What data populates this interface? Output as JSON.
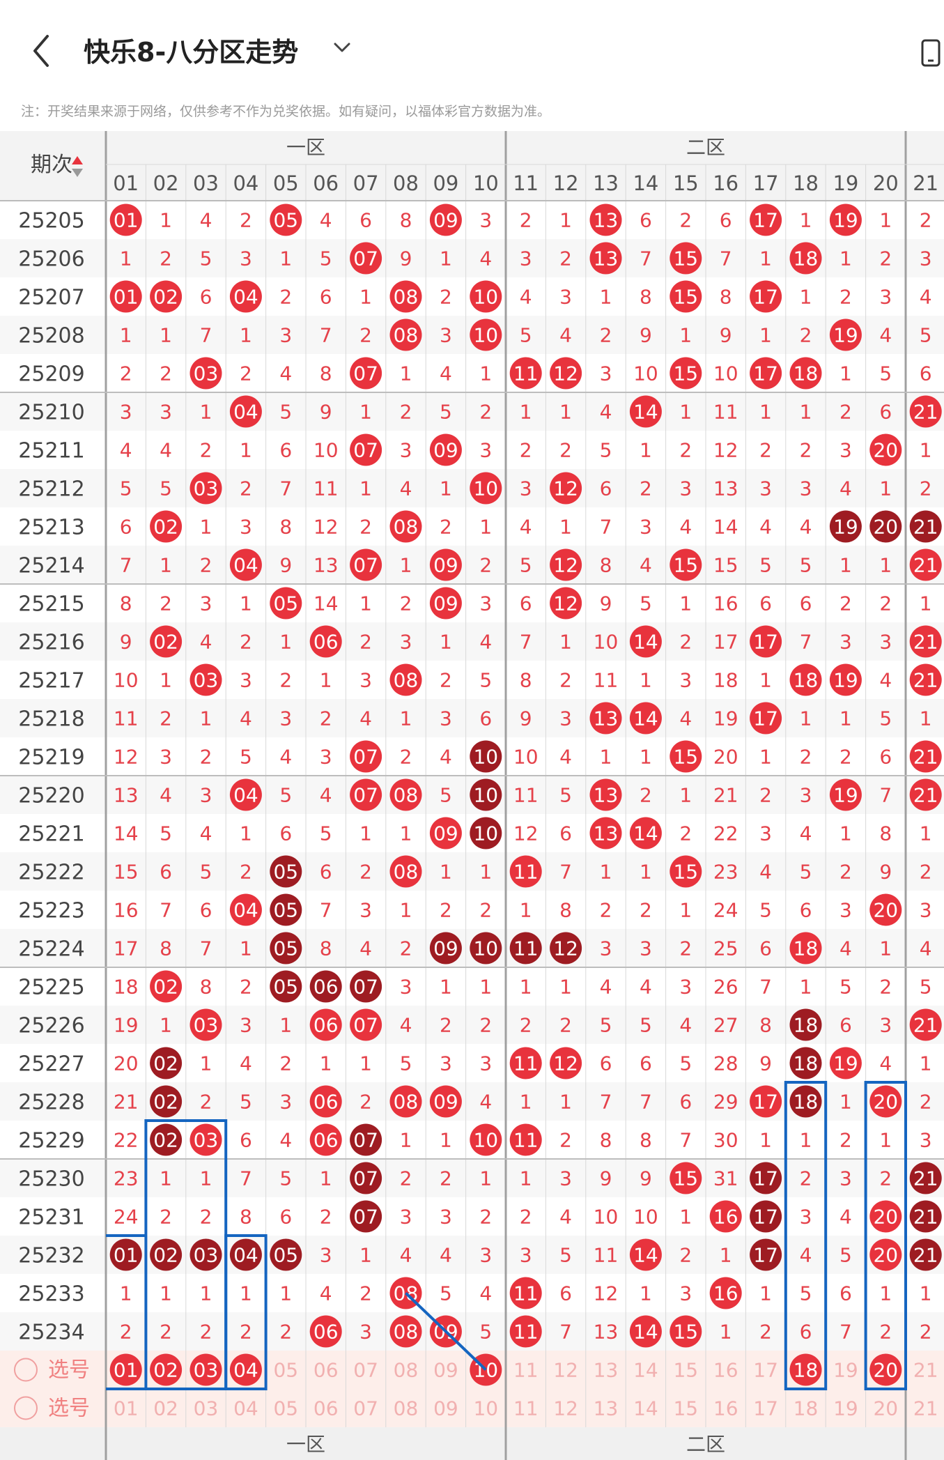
{
  "header": {
    "title": "快乐8-八分区走势",
    "back_icon": "chevron-left-icon",
    "dropdown_icon": "chevron-down-icon",
    "phone_icon": "phone-icon"
  },
  "notice": "注：开奖结果来源于网络，仅供参考不作为兑奖依据。如有疑问，以福体彩官方数据为准。",
  "table": {
    "period_header": "期次",
    "zones": [
      "一区",
      "二区"
    ],
    "columns": [
      "01",
      "02",
      "03",
      "04",
      "05",
      "06",
      "07",
      "08",
      "09",
      "10",
      "11",
      "12",
      "13",
      "14",
      "15",
      "16",
      "17",
      "18",
      "19",
      "20",
      "21"
    ],
    "rows": [
      {
        "period": "25205",
        "cells": [
          "H",
          1,
          4,
          2,
          "H",
          4,
          6,
          8,
          "H",
          3,
          2,
          1,
          "H",
          6,
          2,
          6,
          "H",
          1,
          "H",
          1,
          2
        ]
      },
      {
        "period": "25206",
        "cells": [
          1,
          2,
          5,
          3,
          1,
          5,
          "H",
          9,
          1,
          4,
          3,
          2,
          "H",
          7,
          "H",
          7,
          1,
          "H",
          1,
          2,
          3
        ]
      },
      {
        "period": "25207",
        "cells": [
          "H",
          "H",
          6,
          "H",
          2,
          6,
          1,
          "H",
          2,
          "H",
          4,
          3,
          1,
          8,
          "H",
          8,
          "H",
          1,
          2,
          3,
          4
        ]
      },
      {
        "period": "25208",
        "cells": [
          1,
          1,
          7,
          1,
          3,
          7,
          2,
          "H",
          3,
          "H",
          5,
          4,
          2,
          9,
          1,
          9,
          1,
          2,
          "H",
          4,
          5
        ]
      },
      {
        "period": "25209",
        "cells": [
          2,
          2,
          "H",
          2,
          4,
          8,
          "H",
          1,
          4,
          1,
          "H",
          "H",
          3,
          10,
          "H",
          10,
          "H",
          "H",
          1,
          5,
          6
        ]
      },
      {
        "period": "25210",
        "cells": [
          3,
          3,
          1,
          "H",
          5,
          9,
          1,
          2,
          5,
          2,
          1,
          1,
          4,
          "H",
          1,
          11,
          1,
          1,
          2,
          6,
          "H"
        ]
      },
      {
        "period": "25211",
        "cells": [
          4,
          4,
          2,
          1,
          6,
          10,
          "H",
          3,
          "H",
          3,
          2,
          2,
          5,
          1,
          2,
          12,
          2,
          2,
          3,
          "H",
          1
        ]
      },
      {
        "period": "25212",
        "cells": [
          5,
          5,
          "H",
          2,
          7,
          11,
          1,
          4,
          1,
          "H",
          3,
          "H",
          6,
          2,
          3,
          13,
          3,
          3,
          4,
          1,
          2
        ]
      },
      {
        "period": "25213",
        "cells": [
          6,
          "H",
          1,
          3,
          8,
          12,
          2,
          "H",
          2,
          1,
          4,
          1,
          7,
          3,
          4,
          14,
          4,
          4,
          "D",
          "D",
          "D"
        ]
      },
      {
        "period": "25214",
        "cells": [
          7,
          1,
          2,
          "H",
          9,
          13,
          "H",
          1,
          "H",
          2,
          5,
          "H",
          8,
          4,
          "H",
          15,
          5,
          5,
          1,
          1,
          "H"
        ]
      },
      {
        "period": "25215",
        "cells": [
          8,
          2,
          3,
          1,
          "H",
          14,
          1,
          2,
          "H",
          3,
          6,
          "H",
          9,
          5,
          1,
          16,
          6,
          6,
          2,
          2,
          1
        ]
      },
      {
        "period": "25216",
        "cells": [
          9,
          "H",
          4,
          2,
          1,
          "H",
          2,
          3,
          1,
          4,
          7,
          1,
          10,
          "H",
          2,
          17,
          "H",
          7,
          3,
          3,
          "H"
        ]
      },
      {
        "period": "25217",
        "cells": [
          10,
          1,
          "H",
          3,
          2,
          1,
          3,
          "H",
          2,
          5,
          8,
          2,
          11,
          1,
          3,
          18,
          1,
          "H",
          "H",
          4,
          "H"
        ]
      },
      {
        "period": "25218",
        "cells": [
          11,
          2,
          1,
          4,
          3,
          2,
          4,
          1,
          3,
          6,
          9,
          3,
          "H",
          "H",
          4,
          19,
          "H",
          1,
          1,
          5,
          1
        ]
      },
      {
        "period": "25219",
        "cells": [
          12,
          3,
          2,
          5,
          4,
          3,
          "H",
          2,
          4,
          "D",
          10,
          4,
          1,
          1,
          "H",
          20,
          1,
          2,
          2,
          6,
          "H"
        ]
      },
      {
        "period": "25220",
        "cells": [
          13,
          4,
          3,
          "H",
          5,
          4,
          "H",
          "H",
          5,
          "D",
          11,
          5,
          "H",
          2,
          1,
          21,
          2,
          3,
          "H",
          7,
          "H"
        ]
      },
      {
        "period": "25221",
        "cells": [
          14,
          5,
          4,
          1,
          6,
          5,
          1,
          1,
          "H",
          "D",
          12,
          6,
          "H",
          "H",
          2,
          22,
          3,
          4,
          1,
          8,
          1
        ]
      },
      {
        "period": "25222",
        "cells": [
          15,
          6,
          5,
          2,
          "D",
          6,
          2,
          "H",
          1,
          1,
          "H",
          7,
          1,
          1,
          "H",
          23,
          4,
          5,
          2,
          9,
          2
        ]
      },
      {
        "period": "25223",
        "cells": [
          16,
          7,
          6,
          "H",
          "D",
          7,
          3,
          1,
          2,
          2,
          1,
          8,
          2,
          2,
          1,
          24,
          5,
          6,
          3,
          "H",
          3
        ]
      },
      {
        "period": "25224",
        "cells": [
          17,
          8,
          7,
          1,
          "D",
          8,
          4,
          2,
          "D",
          "D",
          "D",
          "D",
          3,
          3,
          2,
          25,
          6,
          "H",
          4,
          1,
          4
        ]
      },
      {
        "period": "25225",
        "cells": [
          18,
          "H",
          8,
          2,
          "D",
          "D",
          "D",
          3,
          1,
          1,
          1,
          1,
          4,
          4,
          3,
          26,
          7,
          1,
          5,
          2,
          5
        ]
      },
      {
        "period": "25226",
        "cells": [
          19,
          1,
          "H",
          3,
          1,
          "H",
          "H",
          4,
          2,
          2,
          2,
          2,
          5,
          5,
          4,
          27,
          8,
          "D",
          6,
          3,
          "H"
        ]
      },
      {
        "period": "25227",
        "cells": [
          20,
          "D",
          1,
          4,
          2,
          1,
          1,
          5,
          3,
          3,
          "H",
          "H",
          6,
          6,
          5,
          28,
          9,
          "D",
          "H",
          4,
          1
        ]
      },
      {
        "period": "25228",
        "cells": [
          21,
          "D",
          2,
          5,
          3,
          "H",
          2,
          "H",
          "H",
          4,
          1,
          1,
          7,
          7,
          6,
          29,
          "H",
          "D",
          1,
          "H",
          2
        ]
      },
      {
        "period": "25229",
        "cells": [
          22,
          "D",
          "H",
          6,
          4,
          "H",
          "D",
          1,
          1,
          "H",
          "H",
          2,
          8,
          8,
          7,
          30,
          1,
          1,
          2,
          1,
          3
        ]
      },
      {
        "period": "25230",
        "cells": [
          23,
          1,
          1,
          7,
          5,
          1,
          "D",
          2,
          2,
          1,
          1,
          3,
          9,
          9,
          "H",
          31,
          "D",
          2,
          3,
          2,
          "D"
        ]
      },
      {
        "period": "25231",
        "cells": [
          24,
          2,
          2,
          8,
          6,
          2,
          "D",
          3,
          3,
          2,
          2,
          4,
          10,
          10,
          1,
          "H",
          "D",
          3,
          4,
          "H",
          "D"
        ]
      },
      {
        "period": "25232",
        "cells": [
          "D",
          "D",
          "D",
          "D",
          "D",
          3,
          1,
          4,
          4,
          3,
          3,
          5,
          11,
          "H",
          2,
          1,
          "D",
          4,
          5,
          "H",
          "D"
        ]
      },
      {
        "period": "25233",
        "cells": [
          1,
          1,
          1,
          1,
          1,
          4,
          2,
          "H",
          5,
          4,
          "H",
          6,
          12,
          1,
          3,
          "H",
          1,
          5,
          6,
          1,
          1
        ]
      },
      {
        "period": "25234",
        "cells": [
          2,
          2,
          2,
          2,
          2,
          "H",
          3,
          "H",
          "H",
          5,
          "H",
          7,
          13,
          "H",
          "H",
          1,
          2,
          6,
          7,
          2,
          2
        ]
      }
    ],
    "select_rows": [
      {
        "label": "选号",
        "selected": [
          "01",
          "02",
          "03",
          "04",
          "10",
          "18",
          "20"
        ]
      },
      {
        "label": "选号",
        "selected": []
      }
    ],
    "colors": {
      "hit": "#e8333d",
      "hit_repeat": "#9e1c22",
      "miss_text": "#e5414a",
      "grid": "#d8d8d8",
      "zone_border": "#a0a0a0",
      "select_bg": "#fdeeea",
      "marker": "#1565c0"
    }
  }
}
